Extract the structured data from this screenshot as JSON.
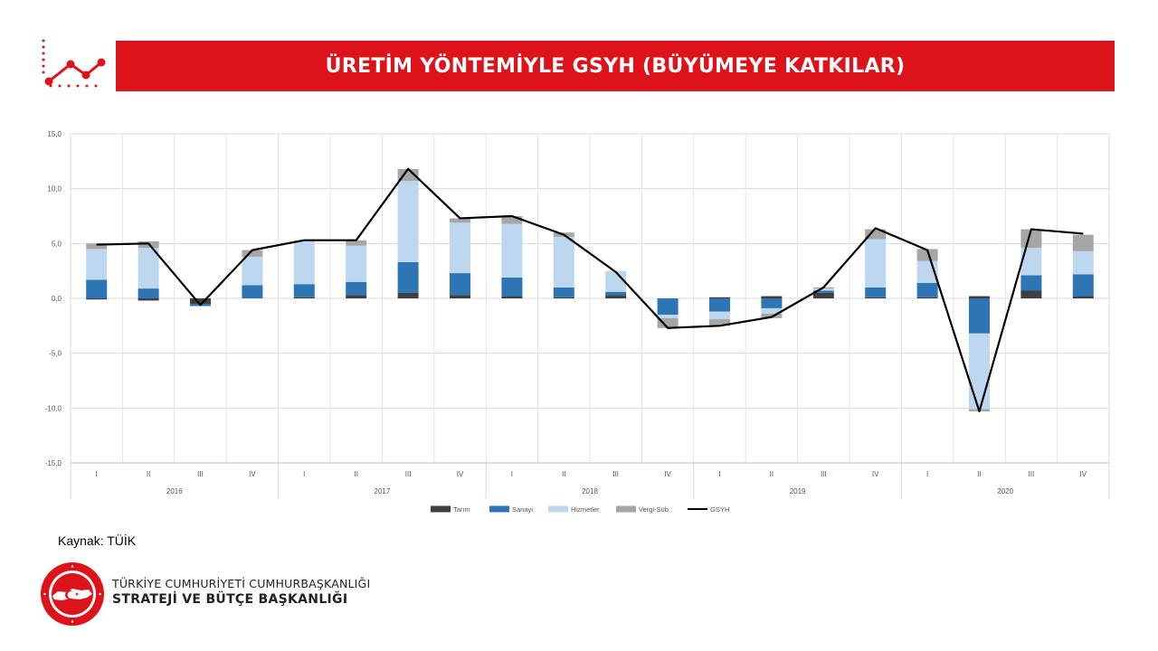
{
  "header": {
    "title": "ÜRETİM YÖNTEMİYLE GSYH (BÜYÜMEYE KATKILAR)",
    "icon": "trend-line-icon"
  },
  "chart_data": {
    "type": "bar",
    "stacked": true,
    "title": "",
    "xlabel": "",
    "ylabel": "",
    "ylim": [
      -15,
      15
    ],
    "yticks": [
      15,
      10,
      5,
      0,
      -5,
      -10,
      -15
    ],
    "ytick_labels": [
      "15,0",
      "10,0",
      "5,0",
      "0,0",
      "-5,0",
      "-10,0",
      "-15,0"
    ],
    "grid": true,
    "legend_position": "bottom",
    "categories": [
      "I",
      "II",
      "III",
      "IV",
      "I",
      "II",
      "III",
      "IV",
      "I",
      "II",
      "III",
      "IV",
      "I",
      "II",
      "III",
      "IV",
      "I",
      "II",
      "III",
      "IV"
    ],
    "groups": [
      {
        "label": "2016",
        "count": 4
      },
      {
        "label": "2017",
        "count": 4
      },
      {
        "label": "2018",
        "count": 4
      },
      {
        "label": "2019",
        "count": 4
      },
      {
        "label": "2020",
        "count": 4
      }
    ],
    "series": [
      {
        "name": "Tarım",
        "kind": "bar",
        "color": "#3f3f3f",
        "values": [
          -0.1,
          -0.2,
          -0.5,
          0.0,
          0.1,
          0.3,
          0.5,
          0.3,
          0.2,
          0.1,
          0.3,
          0.0,
          0.1,
          0.2,
          0.5,
          0.1,
          0.1,
          0.2,
          0.7,
          0.2
        ]
      },
      {
        "name": "Sanayi",
        "kind": "bar",
        "color": "#2e75b6",
        "values": [
          1.7,
          0.9,
          -0.2,
          1.2,
          1.2,
          1.2,
          2.8,
          2.0,
          1.7,
          0.9,
          0.3,
          -1.5,
          -1.2,
          -0.9,
          0.2,
          0.9,
          1.3,
          -3.2,
          1.4,
          2.0
        ]
      },
      {
        "name": "Hizmetler",
        "kind": "bar",
        "color": "#bdd7ee",
        "values": [
          2.8,
          3.7,
          0.0,
          2.6,
          4.0,
          3.3,
          7.4,
          4.6,
          4.9,
          4.6,
          1.9,
          -0.3,
          -0.7,
          -0.5,
          0.2,
          4.4,
          2.0,
          -6.9,
          2.5,
          2.1
        ]
      },
      {
        "name": "Vergi-Süb.",
        "kind": "bar",
        "color": "#a6a6a6",
        "values": [
          0.5,
          0.6,
          0.0,
          0.6,
          0.0,
          0.5,
          1.1,
          0.4,
          0.7,
          0.4,
          0.0,
          -0.9,
          -0.6,
          -0.4,
          0.1,
          0.9,
          1.1,
          -0.2,
          1.7,
          1.5
        ]
      },
      {
        "name": "GSYH",
        "kind": "line",
        "color": "#000000",
        "values": [
          4.9,
          5.0,
          -0.6,
          4.4,
          5.3,
          5.3,
          11.8,
          7.3,
          7.5,
          5.8,
          2.4,
          -2.7,
          -2.5,
          -1.7,
          1.0,
          6.4,
          4.4,
          -10.3,
          6.3,
          5.9
        ]
      }
    ]
  },
  "footer": {
    "source": "Kaynak: TÜİK",
    "org_line1": "TÜRKİYE CUMHURİYETİ CUMHURBAŞKANLIĞI",
    "org_line2": "STRATEJİ VE BÜTÇE BAŞKANLIĞI",
    "seal_icon": "presidency-seal-icon"
  }
}
